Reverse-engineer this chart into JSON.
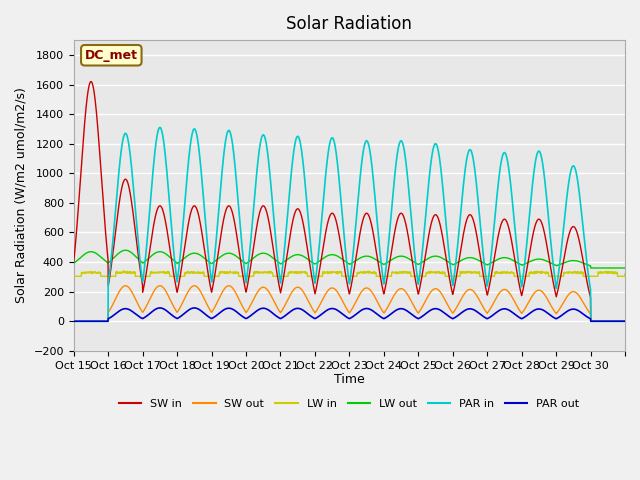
{
  "title": "Solar Radiation",
  "ylabel": "Solar Radiation (W/m2 umol/m2/s)",
  "xlabel": "Time",
  "ylim": [
    -200,
    1900
  ],
  "yticks": [
    -200,
    0,
    200,
    400,
    600,
    800,
    1000,
    1200,
    1400,
    1600,
    1800
  ],
  "xtick_positions": [
    0,
    1,
    2,
    3,
    4,
    5,
    6,
    7,
    8,
    9,
    10,
    11,
    12,
    13,
    14,
    15,
    16
  ],
  "xtick_labels": [
    "Oct 15",
    "Oct 16",
    "Oct 17",
    "Oct 18",
    "Oct 19",
    "Oct 20",
    "Oct 21",
    "Oct 22",
    "Oct 23",
    "Oct 24",
    "Oct 25",
    "Oct 26",
    "Oct 27",
    "Oct 28",
    "Oct 29",
    "Oct 30",
    ""
  ],
  "annotation_text": "DC_met",
  "annotation_color": "#8B0000",
  "annotation_bg": "#FFFFCC",
  "annotation_border": "#8B6914",
  "colors": {
    "SW_in": "#CC0000",
    "SW_out": "#FF8800",
    "LW_in": "#CCCC00",
    "LW_out": "#00CC00",
    "PAR_in": "#00CCCC",
    "PAR_out": "#0000CC"
  },
  "legend_labels": [
    "SW in",
    "SW out",
    "LW in",
    "LW out",
    "PAR in",
    "PAR out"
  ],
  "fig_bg": "#F0F0F0",
  "plot_bg": "#E8E8E8",
  "n_days": 16,
  "points_per_day": 144,
  "SW_in_peaks": [
    1620,
    960,
    780,
    780,
    780,
    780,
    760,
    730,
    730,
    730,
    720,
    720,
    690,
    690,
    640,
    0
  ],
  "SW_out_peaks": [
    0,
    240,
    240,
    240,
    240,
    230,
    230,
    225,
    225,
    220,
    220,
    215,
    215,
    210,
    200,
    0
  ],
  "LW_in_base": 320,
  "LW_out_base": 360,
  "LW_out_peaks": [
    470,
    480,
    470,
    460,
    460,
    460,
    450,
    450,
    440,
    440,
    440,
    430,
    430,
    420,
    410,
    0
  ],
  "PAR_in_peaks": [
    0,
    1270,
    1310,
    1300,
    1290,
    1260,
    1250,
    1240,
    1220,
    1220,
    1200,
    1160,
    1140,
    1150,
    1050,
    0
  ],
  "PAR_out_peaks": [
    0,
    85,
    90,
    90,
    88,
    88,
    87,
    86,
    86,
    85,
    85,
    84,
    84,
    83,
    82,
    0
  ]
}
